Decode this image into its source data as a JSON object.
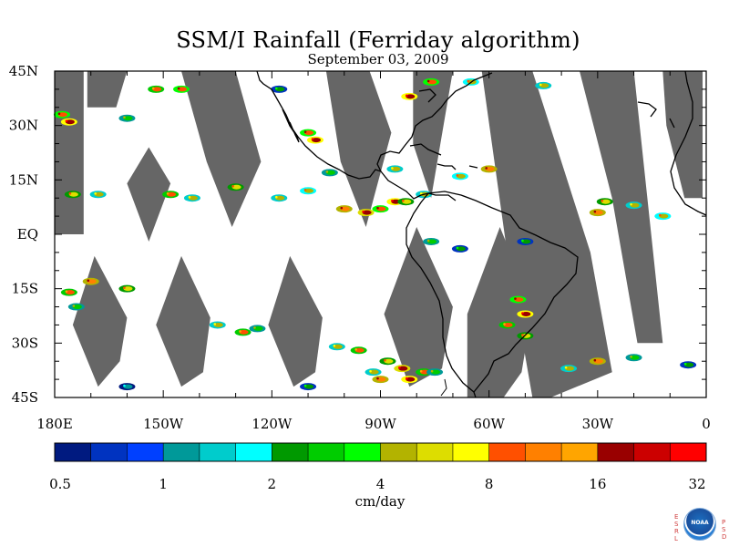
{
  "title": "SSM/I Rainfall (Ferriday algorithm)",
  "subtitle": "September 03, 2009",
  "chart_data": {
    "type": "heatmap",
    "title": "SSM/I Rainfall (Ferriday algorithm)",
    "subtitle": "September 03, 2009",
    "x_axis": {
      "range": [
        -180,
        0
      ],
      "ticks": [
        {
          "value": -180,
          "label": "180E"
        },
        {
          "value": -150,
          "label": "150W"
        },
        {
          "value": -120,
          "label": "120W"
        },
        {
          "value": -90,
          "label": "90W"
        },
        {
          "value": -60,
          "label": "60W"
        },
        {
          "value": -30,
          "label": "30W"
        },
        {
          "value": 0,
          "label": "0"
        }
      ]
    },
    "y_axis": {
      "range": [
        -45,
        45
      ],
      "ticks": [
        {
          "value": 45,
          "label": "45N"
        },
        {
          "value": 30,
          "label": "30N"
        },
        {
          "value": 15,
          "label": "15N"
        },
        {
          "value": 0,
          "label": "EQ"
        },
        {
          "value": -15,
          "label": "15S"
        },
        {
          "value": -30,
          "label": "30S"
        },
        {
          "value": -45,
          "label": "45S"
        }
      ]
    },
    "colorbar": {
      "unit": "cm/day",
      "tick_labels": [
        "0.5",
        "1",
        "2",
        "4",
        "8",
        "16",
        "32"
      ],
      "tick_values": [
        0.5,
        1,
        2,
        4,
        8,
        16,
        32
      ],
      "colors": [
        "#001a80",
        "#0033c0",
        "#0040ff",
        "#009999",
        "#00cccc",
        "#00ffff",
        "#009900",
        "#00cc00",
        "#00ff00",
        "#b3b300",
        "#dddd00",
        "#ffff00",
        "#ff5000",
        "#ff8000",
        "#ffa500",
        "#990000",
        "#cc0000",
        "#ff0000"
      ]
    },
    "missing_data_color": "#666666",
    "missing_swaths": [
      [
        [
          -180,
          45
        ],
        [
          -172,
          45
        ],
        [
          -172,
          0
        ],
        [
          -180,
          0
        ]
      ],
      [
        [
          -171,
          45
        ],
        [
          -160,
          45
        ],
        [
          -163,
          35
        ],
        [
          -171,
          35
        ]
      ],
      [
        [
          -154,
          24
        ],
        [
          -148,
          14
        ],
        [
          -154,
          -2
        ],
        [
          -160,
          14
        ]
      ],
      [
        [
          -145,
          45
        ],
        [
          -130,
          45
        ],
        [
          -123,
          20
        ],
        [
          -131,
          2
        ],
        [
          -138,
          20
        ]
      ],
      [
        [
          -105,
          45
        ],
        [
          -93,
          45
        ],
        [
          -87,
          28
        ],
        [
          -94,
          2
        ],
        [
          -101,
          20
        ]
      ],
      [
        [
          -81,
          45
        ],
        [
          -70,
          45
        ],
        [
          -76,
          10
        ],
        [
          -81,
          25
        ]
      ],
      [
        [
          -62,
          45
        ],
        [
          -48,
          45
        ],
        [
          -32,
          -5
        ],
        [
          -26,
          -38
        ],
        [
          -43,
          -45
        ],
        [
          -48,
          -45
        ],
        [
          -55,
          -5
        ]
      ],
      [
        [
          -35,
          45
        ],
        [
          -20,
          45
        ],
        [
          -12,
          -30
        ],
        [
          -19,
          -30
        ],
        [
          -26,
          10
        ]
      ],
      [
        [
          -12,
          45
        ],
        [
          -1,
          45
        ],
        [
          -1,
          10
        ],
        [
          -6,
          10
        ],
        [
          -11,
          30
        ]
      ],
      [
        [
          -169,
          -6
        ],
        [
          -160,
          -23
        ],
        [
          -162,
          -35
        ],
        [
          -168,
          -42
        ],
        [
          -175,
          -25
        ]
      ],
      [
        [
          -145,
          -6
        ],
        [
          -137,
          -23
        ],
        [
          -139,
          -38
        ],
        [
          -145,
          -42
        ],
        [
          -152,
          -25
        ]
      ],
      [
        [
          -115,
          -6
        ],
        [
          -106,
          -23
        ],
        [
          -108,
          -38
        ],
        [
          -114,
          -42
        ],
        [
          -121,
          -25
        ]
      ],
      [
        [
          -80,
          2
        ],
        [
          -70,
          -20
        ],
        [
          -73,
          -37
        ],
        [
          -82,
          -42
        ],
        [
          -89,
          -22
        ]
      ],
      [
        [
          -57,
          2
        ],
        [
          -48,
          -20
        ],
        [
          -51,
          -38
        ],
        [
          -56,
          -45
        ],
        [
          -66,
          -45
        ],
        [
          -66,
          -22
        ]
      ]
    ],
    "rain_cells": [
      {
        "lon": -178,
        "lat": 33,
        "value": 10
      },
      {
        "lon": -176,
        "lat": 31,
        "value": 20
      },
      {
        "lon": -175,
        "lat": 11,
        "value": 6
      },
      {
        "lon": -168,
        "lat": 11,
        "value": 4
      },
      {
        "lon": -152,
        "lat": 40,
        "value": 8
      },
      {
        "lon": -145,
        "lat": 40,
        "value": 10
      },
      {
        "lon": -170,
        "lat": -13,
        "value": 12
      },
      {
        "lon": -176,
        "lat": -16,
        "value": 8
      },
      {
        "lon": -174,
        "lat": -20,
        "value": 3
      },
      {
        "lon": -160,
        "lat": -15,
        "value": 6
      },
      {
        "lon": -148,
        "lat": 11,
        "value": 8
      },
      {
        "lon": -142,
        "lat": 10,
        "value": 4
      },
      {
        "lon": -130,
        "lat": 13,
        "value": 6
      },
      {
        "lon": -118,
        "lat": 10,
        "value": 4
      },
      {
        "lon": -110,
        "lat": 12,
        "value": 5
      },
      {
        "lon": -104,
        "lat": 17,
        "value": 3
      },
      {
        "lon": -110,
        "lat": 28,
        "value": 10
      },
      {
        "lon": -108,
        "lat": 26,
        "value": 20
      },
      {
        "lon": -100,
        "lat": 7,
        "value": 12
      },
      {
        "lon": -94,
        "lat": 6,
        "value": 18
      },
      {
        "lon": -90,
        "lat": 7,
        "value": 10
      },
      {
        "lon": -86,
        "lat": 9,
        "value": 20
      },
      {
        "lon": -83,
        "lat": 9,
        "value": 6
      },
      {
        "lon": -78,
        "lat": 11,
        "value": 4
      },
      {
        "lon": -86,
        "lat": 18,
        "value": 4
      },
      {
        "lon": -68,
        "lat": 16,
        "value": 5
      },
      {
        "lon": -60,
        "lat": 18,
        "value": 12
      },
      {
        "lon": -82,
        "lat": 38,
        "value": 20
      },
      {
        "lon": -76,
        "lat": 42,
        "value": 10
      },
      {
        "lon": -65,
        "lat": 42,
        "value": 5
      },
      {
        "lon": -45,
        "lat": 41,
        "value": 4
      },
      {
        "lon": -20,
        "lat": 8,
        "value": 4
      },
      {
        "lon": -28,
        "lat": 9,
        "value": 6
      },
      {
        "lon": -30,
        "lat": 6,
        "value": 12
      },
      {
        "lon": -12,
        "lat": 5,
        "value": 5
      },
      {
        "lon": -76,
        "lat": -2,
        "value": 3
      },
      {
        "lon": -68,
        "lat": -4,
        "value": 2
      },
      {
        "lon": -50,
        "lat": -2,
        "value": 2
      },
      {
        "lon": -52,
        "lat": -18,
        "value": 10
      },
      {
        "lon": -50,
        "lat": -22,
        "value": 20
      },
      {
        "lon": -55,
        "lat": -25,
        "value": 8
      },
      {
        "lon": -50,
        "lat": -28,
        "value": 6
      },
      {
        "lon": -135,
        "lat": -25,
        "value": 4
      },
      {
        "lon": -128,
        "lat": -27,
        "value": 8
      },
      {
        "lon": -124,
        "lat": -26,
        "value": 3
      },
      {
        "lon": -102,
        "lat": -31,
        "value": 4
      },
      {
        "lon": -96,
        "lat": -32,
        "value": 8
      },
      {
        "lon": -88,
        "lat": -35,
        "value": 6
      },
      {
        "lon": -84,
        "lat": -37,
        "value": 16
      },
      {
        "lon": -82,
        "lat": -40,
        "value": 20
      },
      {
        "lon": -78,
        "lat": -38,
        "value": 8
      },
      {
        "lon": -90,
        "lat": -40,
        "value": 12
      },
      {
        "lon": -92,
        "lat": -38,
        "value": 4
      },
      {
        "lon": -75,
        "lat": -38,
        "value": 3
      },
      {
        "lon": -38,
        "lat": -37,
        "value": 4
      },
      {
        "lon": -30,
        "lat": -35,
        "value": 12
      },
      {
        "lon": -20,
        "lat": -34,
        "value": 3
      },
      {
        "lon": -5,
        "lat": -36,
        "value": 2
      },
      {
        "lon": -110,
        "lat": -42,
        "value": 2
      },
      {
        "lon": -160,
        "lat": -42,
        "value": 1
      },
      {
        "lon": -160,
        "lat": 32,
        "value": 3
      },
      {
        "lon": -118,
        "lat": 40,
        "value": 2
      }
    ]
  }
}
